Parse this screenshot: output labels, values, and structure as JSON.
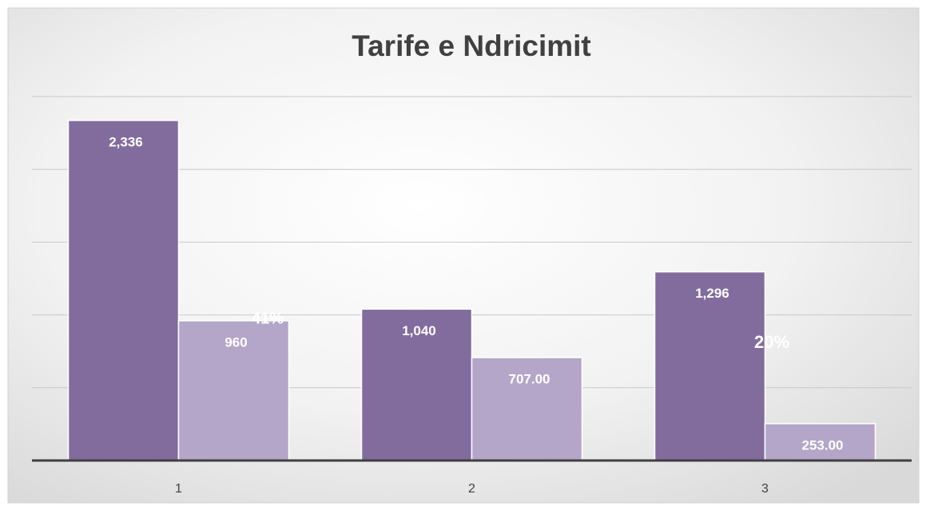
{
  "chart_data": {
    "type": "bar",
    "title": "Tarife e Ndricimit",
    "categories": [
      "1",
      "2",
      "3"
    ],
    "series": [
      {
        "color": "#826c9e",
        "values": [
          2336,
          1040,
          1296
        ],
        "value_labels": [
          "2,336",
          "1,040",
          "1,296"
        ]
      },
      {
        "color": "#b4a6c8",
        "values": [
          960,
          707,
          253
        ],
        "value_labels": [
          "960",
          "707.00",
          "253.00"
        ]
      }
    ],
    "annotations": [
      "41%",
      "20%"
    ],
    "ylim": [
      0,
      2500
    ],
    "yticks": [
      0,
      500,
      1000,
      1500,
      2000,
      2500
    ],
    "grid": true
  }
}
